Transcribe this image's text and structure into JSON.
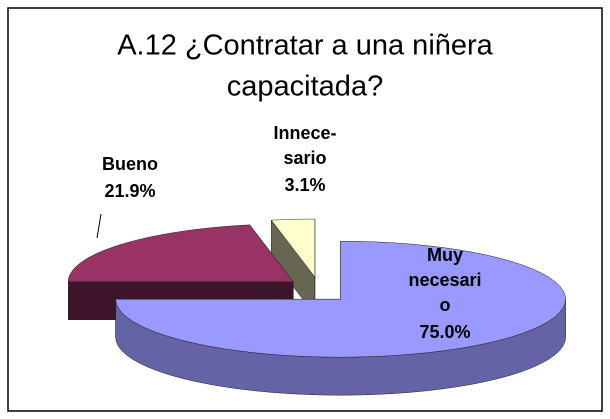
{
  "chart_data": {
    "type": "pie",
    "title": [
      "A.12 ¿Contratar a una niñera",
      "capacitada?"
    ],
    "categories": [
      [
        "Muy",
        "necesari",
        "o"
      ],
      [
        "Bueno"
      ],
      [
        "Innece-",
        "sario"
      ]
    ],
    "values": [
      75.0,
      21.9,
      3.1
    ],
    "value_labels": [
      "75.0%",
      "21.9%",
      "3.1%"
    ],
    "colors": [
      "#9999ff",
      "#993366",
      "#ffffcc"
    ]
  }
}
